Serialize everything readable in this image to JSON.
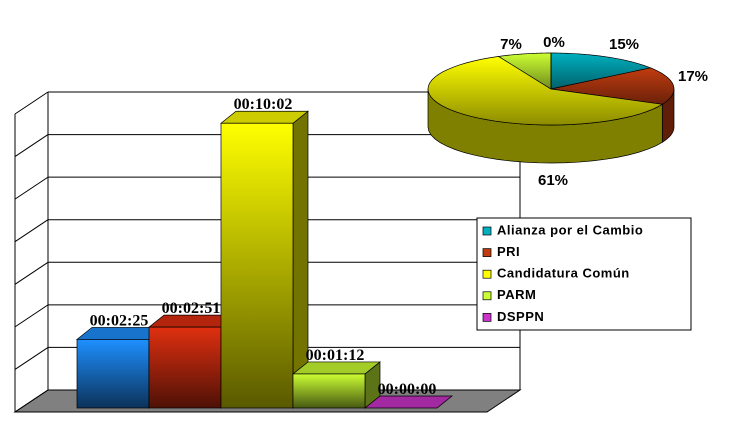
{
  "chart_data": [
    {
      "type": "bar",
      "values": [
        145,
        171,
        602,
        72,
        0
      ],
      "value_labels": [
        "00:02:25",
        "00:02:51",
        "00:10:02",
        "00:01:12",
        "00:00:00"
      ],
      "colors": [
        "#1e90ff",
        "#e03010",
        "#ffff00",
        "#ccff33",
        "#cc33cc"
      ],
      "ylim": [
        0,
        630
      ],
      "yticks": [
        0,
        90,
        180,
        270,
        360,
        450,
        540,
        630
      ],
      "grid": true
    },
    {
      "type": "pie",
      "categories": [
        "Alianza por el Cambio",
        "PRI",
        "Candidatura Común",
        "PARM",
        "DSPPN"
      ],
      "values": [
        15,
        17,
        61,
        7,
        0
      ],
      "value_labels": [
        "15%",
        "17%",
        "61%",
        "7%",
        "0%"
      ],
      "colors": [
        "#00b0c0",
        "#c03c10",
        "#ffff00",
        "#ccff33",
        "#cc33cc"
      ],
      "legend": "lower-right"
    }
  ]
}
